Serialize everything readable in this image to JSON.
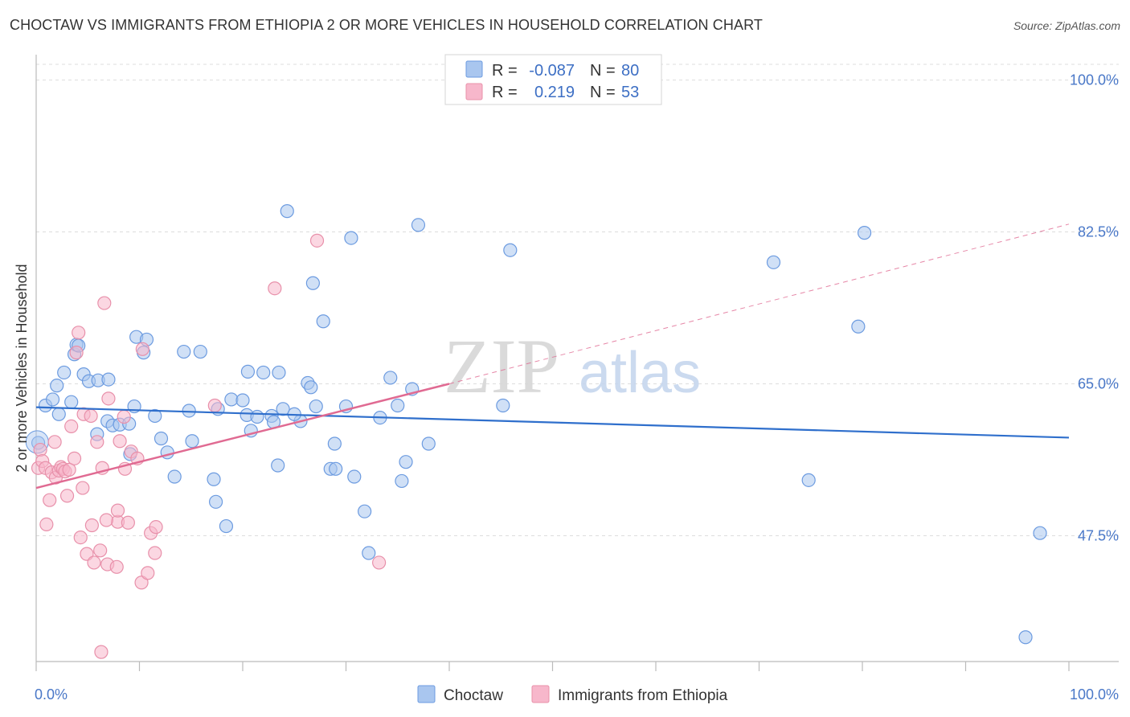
{
  "header": {
    "title": "CHOCTAW VS IMMIGRANTS FROM ETHIOPIA 2 OR MORE VEHICLES IN HOUSEHOLD CORRELATION CHART",
    "source": "Source: ZipAtlas.com"
  },
  "watermark": {
    "zip": "ZIP",
    "atlas": "atlas"
  },
  "stats": {
    "rows": [
      {
        "label_r": "R =",
        "r": "-0.087",
        "label_n": "N =",
        "n": "80",
        "color": "#a9c6ef"
      },
      {
        "label_r": "R =",
        "r": "0.219",
        "label_n": "N =",
        "n": "53",
        "color": "#f7b7cb"
      }
    ]
  },
  "legend": {
    "items": [
      {
        "label": "Choctaw"
      },
      {
        "label": "Immigrants from Ethiopia"
      }
    ]
  },
  "chart_data": {
    "type": "scatter",
    "title": "CHOCTAW VS IMMIGRANTS FROM ETHIOPIA 2 OR MORE VEHICLES IN HOUSEHOLD CORRELATION CHART",
    "xlabel": "",
    "ylabel": "2 or more Vehicles in Household",
    "x_tick_labels": [
      "0.0%",
      "100.0%"
    ],
    "y_tick_labels": [
      "47.5%",
      "65.0%",
      "82.5%",
      "100.0%"
    ],
    "y_ticks": [
      47.5,
      65.0,
      82.5,
      100.0
    ],
    "xlim": [
      0,
      100
    ],
    "ylim": [
      33,
      102
    ],
    "grid": true,
    "legend_position": "bottom-center",
    "series": [
      {
        "name": "Choctaw",
        "color": "#a9c6ef",
        "edge": "#6c9be0",
        "r": -0.087,
        "n": 80,
        "trend": {
          "x": [
            0,
            100
          ],
          "y": [
            62.3,
            58.8
          ],
          "color": "#2f6fcc"
        },
        "points": [
          [
            0.2,
            58.2
          ],
          [
            0.9,
            62.5
          ],
          [
            1.6,
            63.2
          ],
          [
            2.0,
            64.8
          ],
          [
            2.2,
            61.5
          ],
          [
            2.7,
            66.3
          ],
          [
            3.4,
            62.9
          ],
          [
            3.7,
            68.4
          ],
          [
            3.9,
            69.5
          ],
          [
            4.6,
            66.1
          ],
          [
            5.1,
            65.3
          ],
          [
            5.9,
            59.2
          ],
          [
            6.0,
            65.4
          ],
          [
            6.9,
            60.7
          ],
          [
            7.0,
            65.5
          ],
          [
            7.4,
            60.2
          ],
          [
            8.1,
            60.3
          ],
          [
            9.1,
            56.9
          ],
          [
            9.5,
            62.4
          ],
          [
            9.7,
            70.4
          ],
          [
            10.4,
            68.6
          ],
          [
            10.7,
            70.1
          ],
          [
            11.5,
            61.3
          ],
          [
            12.1,
            58.7
          ],
          [
            12.7,
            57.1
          ],
          [
            13.4,
            54.3
          ],
          [
            14.3,
            68.7
          ],
          [
            14.8,
            61.9
          ],
          [
            15.1,
            58.4
          ],
          [
            15.9,
            68.7
          ],
          [
            17.2,
            54.0
          ],
          [
            17.4,
            51.4
          ],
          [
            17.6,
            62.1
          ],
          [
            18.4,
            48.6
          ],
          [
            18.9,
            63.2
          ],
          [
            20.0,
            63.1
          ],
          [
            20.4,
            61.4
          ],
          [
            20.5,
            66.4
          ],
          [
            21.4,
            61.2
          ],
          [
            22.0,
            66.3
          ],
          [
            22.8,
            61.3
          ],
          [
            23.0,
            60.6
          ],
          [
            23.5,
            66.3
          ],
          [
            23.9,
            62.1
          ],
          [
            23.4,
            55.6
          ],
          [
            24.3,
            84.9
          ],
          [
            25.6,
            60.7
          ],
          [
            25.0,
            61.5
          ],
          [
            26.3,
            65.1
          ],
          [
            26.6,
            64.6
          ],
          [
            26.8,
            76.6
          ],
          [
            27.1,
            62.4
          ],
          [
            27.8,
            72.2
          ],
          [
            28.5,
            55.2
          ],
          [
            28.9,
            58.1
          ],
          [
            29.0,
            55.2
          ],
          [
            30.0,
            62.4
          ],
          [
            30.5,
            81.8
          ],
          [
            30.8,
            54.3
          ],
          [
            31.8,
            50.3
          ],
          [
            32.2,
            45.5
          ],
          [
            34.3,
            65.7
          ],
          [
            35.0,
            62.5
          ],
          [
            35.4,
            53.8
          ],
          [
            35.8,
            56.0
          ],
          [
            36.4,
            64.4
          ],
          [
            37.0,
            83.3
          ],
          [
            38.0,
            58.1
          ],
          [
            45.2,
            62.5
          ],
          [
            45.9,
            80.4
          ],
          [
            71.4,
            79.0
          ],
          [
            79.6,
            71.6
          ],
          [
            80.2,
            82.4
          ],
          [
            74.8,
            53.9
          ],
          [
            97.2,
            47.8
          ],
          [
            95.8,
            35.8
          ],
          [
            9.0,
            60.4
          ],
          [
            20.8,
            59.6
          ],
          [
            33.3,
            61.1
          ],
          [
            4.1,
            69.4
          ]
        ]
      },
      {
        "name": "Immigrants from Ethiopia",
        "color": "#f7b7cb",
        "edge": "#e890aa",
        "r": 0.219,
        "n": 53,
        "trend": {
          "x": [
            0,
            40
          ],
          "y": [
            53.0,
            65.0
          ],
          "dashed_to": [
            100,
            83.4
          ],
          "color": "#e06a92"
        },
        "points": [
          [
            0.2,
            55.3
          ],
          [
            0.4,
            57.4
          ],
          [
            0.6,
            56.1
          ],
          [
            0.9,
            55.3
          ],
          [
            1.0,
            48.8
          ],
          [
            1.3,
            51.6
          ],
          [
            1.5,
            54.8
          ],
          [
            1.8,
            58.3
          ],
          [
            1.9,
            54.2
          ],
          [
            2.2,
            55.0
          ],
          [
            2.4,
            55.4
          ],
          [
            2.6,
            55.2
          ],
          [
            2.8,
            54.9
          ],
          [
            3.0,
            52.1
          ],
          [
            3.2,
            55.1
          ],
          [
            3.4,
            60.1
          ],
          [
            3.7,
            56.4
          ],
          [
            3.9,
            68.6
          ],
          [
            4.1,
            70.9
          ],
          [
            4.3,
            47.3
          ],
          [
            4.5,
            53.0
          ],
          [
            4.6,
            61.5
          ],
          [
            4.9,
            45.4
          ],
          [
            5.4,
            48.7
          ],
          [
            5.6,
            44.4
          ],
          [
            5.9,
            58.3
          ],
          [
            6.2,
            45.8
          ],
          [
            6.4,
            55.3
          ],
          [
            6.6,
            74.3
          ],
          [
            6.9,
            44.2
          ],
          [
            7.0,
            63.3
          ],
          [
            6.3,
            34.1
          ],
          [
            7.8,
            43.9
          ],
          [
            7.9,
            49.1
          ],
          [
            7.9,
            50.4
          ],
          [
            8.1,
            58.4
          ],
          [
            8.5,
            61.2
          ],
          [
            8.6,
            55.2
          ],
          [
            8.9,
            49.0
          ],
          [
            9.2,
            57.2
          ],
          [
            9.8,
            56.4
          ],
          [
            10.3,
            69.0
          ],
          [
            10.2,
            42.1
          ],
          [
            10.8,
            43.2
          ],
          [
            11.1,
            47.8
          ],
          [
            11.5,
            45.5
          ],
          [
            11.6,
            48.5
          ],
          [
            17.3,
            62.5
          ],
          [
            23.1,
            76.0
          ],
          [
            27.2,
            81.5
          ],
          [
            33.2,
            44.4
          ],
          [
            6.8,
            49.3
          ],
          [
            5.3,
            61.3
          ]
        ]
      }
    ]
  }
}
